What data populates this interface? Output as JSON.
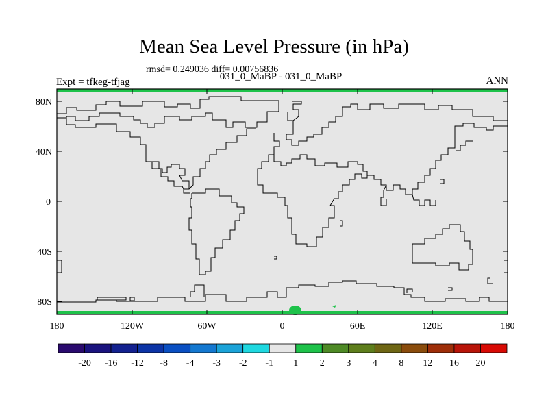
{
  "title": "Mean Sea Level Pressure (in hPa)",
  "stats": "rmsd= 0.249036  diff= 0.00756836",
  "subtitle": "031_0_MaBP - 031_0_MaBP",
  "left_label": "Expt = tfkeg-tfjag",
  "right_label": "ANN",
  "axes": {
    "lat_ticks": [
      {
        "label": "80N",
        "value": 80
      },
      {
        "label": "40N",
        "value": 40
      },
      {
        "label": "0",
        "value": 0
      },
      {
        "label": "40S",
        "value": -40
      },
      {
        "label": "80S",
        "value": -80
      }
    ],
    "lon_ticks": [
      {
        "label": "180",
        "value": -180
      },
      {
        "label": "120W",
        "value": -120
      },
      {
        "label": "60W",
        "value": -60
      },
      {
        "label": "0",
        "value": 0
      },
      {
        "label": "60E",
        "value": 60
      },
      {
        "label": "120E",
        "value": 120
      },
      {
        "label": "180",
        "value": 180
      }
    ]
  },
  "colorbar": {
    "labels": [
      "-20",
      "-16",
      "-12",
      "-8",
      "-4",
      "-3",
      "-2",
      "-1",
      "1",
      "2",
      "3",
      "4",
      "8",
      "12",
      "16",
      "20"
    ],
    "colors": [
      "#2a0a6e",
      "#1a137e",
      "#13218f",
      "#0c34a6",
      "#0a4fc2",
      "#1478d0",
      "#1ba3d8",
      "#1fd8e0",
      "#e6e6e6",
      "#1ec24a",
      "#4e8a26",
      "#5e7e1c",
      "#6e6614",
      "#8a4c0c",
      "#9e2e08",
      "#b81408",
      "#d80a04"
    ]
  },
  "map_colors": {
    "background": "#e6e6e6",
    "positive_1_2": "#1ec24a"
  }
}
